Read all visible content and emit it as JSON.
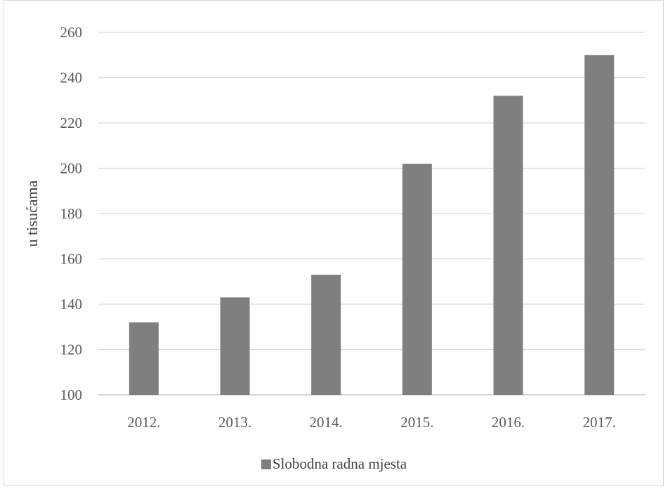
{
  "chart_data": {
    "type": "bar",
    "title": "",
    "xlabel": "",
    "ylabel": "u tisućama",
    "categories": [
      "2012.",
      "2013.",
      "2014.",
      "2015.",
      "2016.",
      "2017."
    ],
    "series": [
      {
        "name": "Slobodna radna mjesta",
        "values": [
          132,
          143,
          153,
          202,
          232,
          250
        ]
      }
    ],
    "ylim": [
      100,
      260
    ],
    "yticks": [
      100,
      120,
      140,
      160,
      180,
      200,
      220,
      240,
      260
    ],
    "grid": true,
    "legend": "bottom-center",
    "colors": {
      "bar": "#7f7f7f",
      "grid": "#d9d9d9",
      "text": "#595959"
    }
  }
}
